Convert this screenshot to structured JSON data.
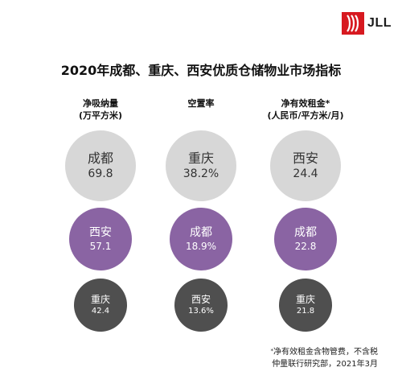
{
  "brand": {
    "logo_text": "JLL",
    "accent_color": "#d71920"
  },
  "title": "2020年成都、重庆、西安优质仓储物业市场指标",
  "columns": [
    {
      "header_line1": "净吸纳量",
      "header_line2": "(万平方米)",
      "circles": [
        {
          "city": "成都",
          "value": "69.8"
        },
        {
          "city": "西安",
          "value": "57.1"
        },
        {
          "city": "重庆",
          "value": "42.4"
        }
      ]
    },
    {
      "header_line1": "空置率",
      "header_line2": "",
      "circles": [
        {
          "city": "重庆",
          "value": "38.2%"
        },
        {
          "city": "成都",
          "value": "18.9%"
        },
        {
          "city": "西安",
          "value": "13.6%"
        }
      ]
    },
    {
      "header_line1": "净有效租金*",
      "header_line2": "(人民币/平方米/月)",
      "circles": [
        {
          "city": "西安",
          "value": "24.4"
        },
        {
          "city": "成都",
          "value": "22.8"
        },
        {
          "city": "重庆",
          "value": "21.8"
        }
      ]
    }
  ],
  "tier_colors": {
    "rank1": "#d7d7d7",
    "rank2": "#8a64a3",
    "rank3": "#4f4f4f"
  },
  "footnote": {
    "marker": "*",
    "line1": "净有效租金含物管费，不含税",
    "line2": "仲量联行研究部，2021年3月"
  }
}
